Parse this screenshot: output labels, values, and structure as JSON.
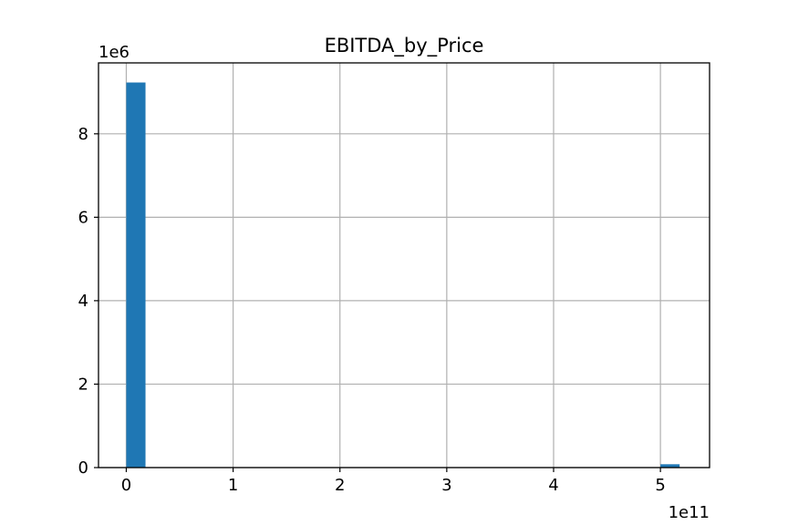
{
  "chart_data": {
    "type": "bar",
    "title": "EBITDA_by_Price",
    "xlabel": "",
    "ylabel": "",
    "x_offset_label": "1e11",
    "y_offset_label": "1e6",
    "x_ticks": [
      "0",
      "1",
      "2",
      "3",
      "4",
      "5"
    ],
    "y_ticks": [
      "0",
      "2",
      "4",
      "6",
      "8"
    ],
    "x_tick_values": [
      0,
      1,
      2,
      3,
      4,
      5
    ],
    "y_tick_values": [
      0,
      2,
      4,
      6,
      8
    ],
    "xlim": [
      -0.26,
      5.46
    ],
    "ylim": [
      0,
      9.7
    ],
    "bins": [
      {
        "x0": 0.0,
        "x1": 0.18,
        "value": 9.23
      },
      {
        "x0": 5.0,
        "x1": 5.18,
        "value": 0.08
      }
    ],
    "grid": true,
    "legend": "none",
    "colors": {
      "bar": "#1f77b4",
      "grid": "#b0b0b0",
      "axis": "#000000"
    }
  }
}
